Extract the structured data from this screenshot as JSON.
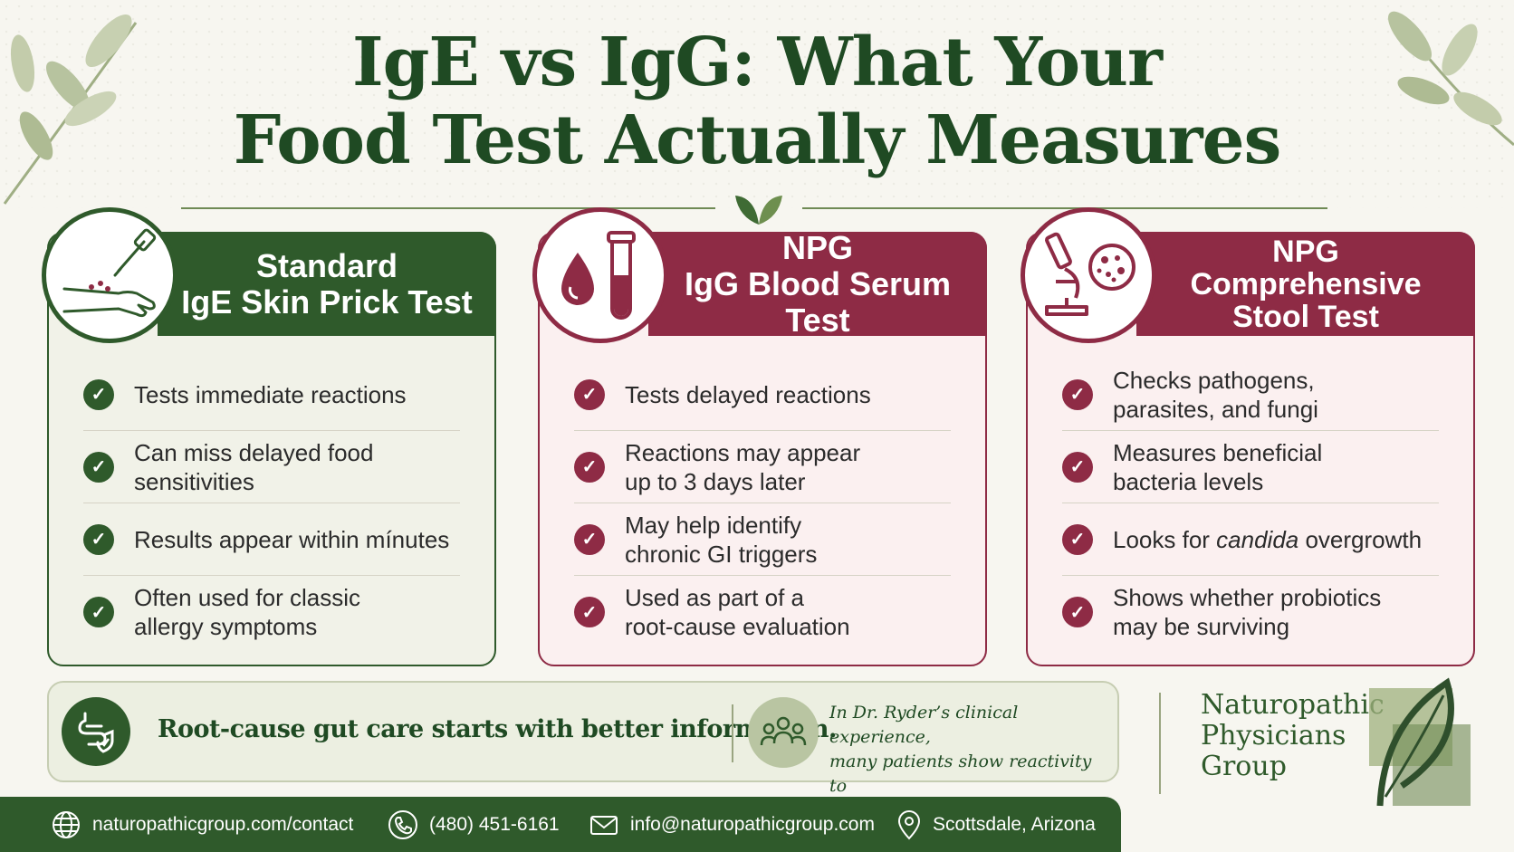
{
  "title": {
    "line1": "IgE vs IgG: What Your",
    "line2": "Food Test Actually Measures"
  },
  "cards": [
    {
      "heading": [
        "Standard",
        "IgE Skin Prick Test"
      ],
      "icon": "skin-prick-arm-icon",
      "items": [
        "Tests immediate reactions",
        "Can miss delayed food\nsensitivities",
        "Results appear within mínutes",
        "Often used for classic\nallergy symptoms"
      ]
    },
    {
      "heading": [
        "NPG",
        "IgG Blood Serum Test"
      ],
      "icon": "blood-test-tube-icon",
      "items": [
        "Tests delayed reactions",
        "Reactions may appear\nup to 3 days later",
        "May help identify\nchronic GI triggers",
        "Used as part of a\nroot-cause evaluation"
      ]
    },
    {
      "heading": [
        "NPG",
        "Comprehensive",
        "Stool Test"
      ],
      "icon": "microscope-icon",
      "items": [
        "Checks pathogens,\nparasites, and fungi",
        "Measures beneficial\nbacteria levels",
        {
          "pre": "Looks for ",
          "em": "candida",
          "post": " overgrowth"
        },
        "Shows whether probiotics\nmay be surviving"
      ]
    }
  ],
  "banner": {
    "text": "Root-cause gut care starts with better information.",
    "quote": "In Dr. Ryder’s clinical experience,\nmany patients show reactivity to\ngluten, dairy, or eggs."
  },
  "brand": "Naturopathic\nPhysicians\nGroup",
  "footer": {
    "website": "naturopathicgroup.com/contact",
    "phone": "(480) 451-6161",
    "email": "info@naturopathicgroup.com",
    "location": "Scottsdale, Arizona"
  },
  "colors": {
    "green": "#2f5a2b",
    "maroon": "#8e2b45",
    "sage": "#b9c5a2"
  }
}
